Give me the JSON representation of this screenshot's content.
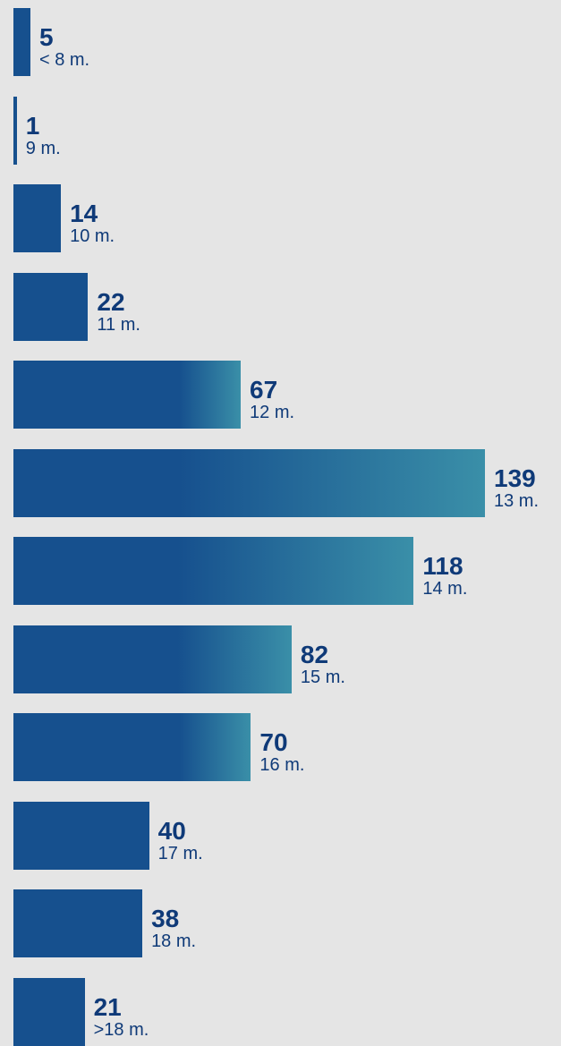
{
  "chart_data": {
    "type": "bar",
    "orientation": "horizontal",
    "categories": [
      "< 8 m.",
      "9 m.",
      "10 m.",
      "11 m.",
      "12 m.",
      "13 m.",
      "14 m.",
      "15 m.",
      "16 m.",
      "17 m.",
      "18 m.",
      ">18 m."
    ],
    "values": [
      5,
      1,
      14,
      22,
      67,
      139,
      118,
      82,
      70,
      40,
      38,
      21
    ],
    "title": "",
    "xlabel": "",
    "ylabel": "",
    "xlim": [
      0,
      139
    ],
    "grid": false,
    "legend": "none",
    "colors": {
      "bar_dark": "#16508e",
      "bar_light": "#3a8fa8",
      "text": "#0f3a78",
      "background": "#e5e5e5"
    }
  }
}
